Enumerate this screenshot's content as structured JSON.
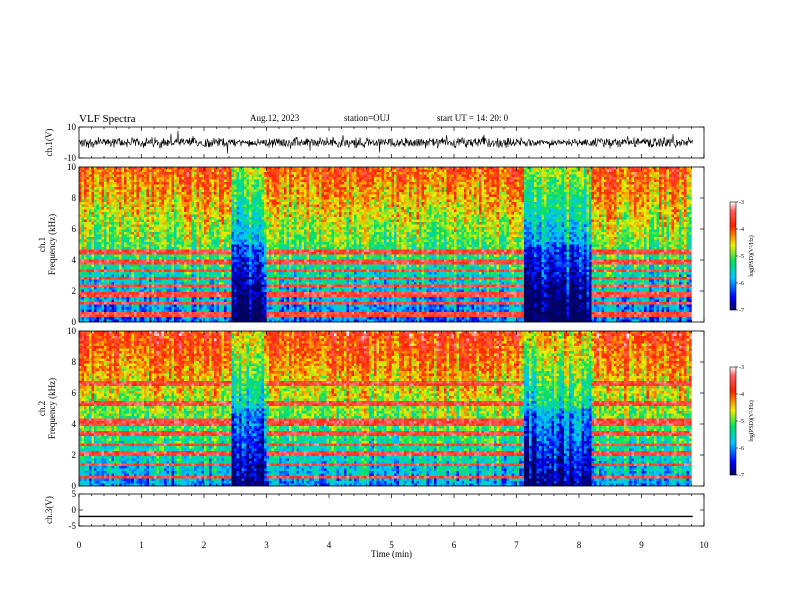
{
  "header": {
    "title": "VLF Spectra",
    "date": "Aug.12, 2023",
    "station": "station=OUJ",
    "start": "start  UT =   14: 20: 0"
  },
  "colors": {
    "low": "#0000a0",
    "mid_low": "#00c0ff",
    "mid": "#00e060",
    "mid_high": "#f0f000",
    "high": "#ff2000",
    "top": "#ffffff"
  },
  "chart_data": [
    {
      "type": "line",
      "name": "ch1-waveform",
      "ylabel": "ch.1(V)",
      "ylim": [
        -10,
        10
      ],
      "yticks": [
        "10",
        "-10"
      ],
      "baseline": 0,
      "amplitude_typical": 3
    },
    {
      "type": "heatmap",
      "name": "ch1-spectrogram",
      "ylabel": "ch.1\nFrequency (kHz)",
      "ylim": [
        0,
        10
      ],
      "yticks": [
        "0",
        "2",
        "4",
        "6",
        "8",
        "10"
      ],
      "xlim": [
        0,
        10
      ],
      "colorbar": {
        "label": "log(PSD)(V²/Hz)",
        "range": [
          -7,
          -3
        ],
        "ticks": [
          "-3",
          "-4",
          "-5",
          "-6",
          "-7"
        ]
      },
      "quiet_intervals_min": [
        [
          2.4,
          3.0
        ],
        [
          7.1,
          8.2
        ]
      ],
      "tone_bands_khz": [
        0.5,
        1.2,
        1.8,
        2.3,
        2.8,
        3.3,
        3.9,
        4.5
      ]
    },
    {
      "type": "heatmap",
      "name": "ch2-spectrogram",
      "ylabel": "ch.2\nFrequency (kHz)",
      "ylim": [
        0,
        10
      ],
      "yticks": [
        "0",
        "2",
        "4",
        "6",
        "8",
        "10"
      ],
      "xlim": [
        0,
        10
      ],
      "colorbar": {
        "label": "log(PSD)(V²/Hz)",
        "range": [
          -7,
          -3
        ],
        "ticks": [
          "-3",
          "-4",
          "-5",
          "-6",
          "-7"
        ]
      },
      "quiet_intervals_min": [
        [
          2.4,
          3.0
        ],
        [
          7.1,
          8.2
        ]
      ],
      "tone_bands_khz": [
        0.6,
        1.4,
        2.1,
        2.7,
        3.4,
        4.0,
        4.3,
        5.3,
        6.6
      ]
    },
    {
      "type": "line",
      "name": "ch3-waveform",
      "ylabel": "ch.3(V)",
      "ylim": [
        -5,
        5
      ],
      "yticks": [
        "5",
        "0",
        "-5"
      ],
      "constant_value": -2
    }
  ],
  "xaxis": {
    "label": "Time (min)",
    "ticks": [
      "0",
      "1",
      "2",
      "3",
      "4",
      "5",
      "6",
      "7",
      "8",
      "9",
      "10"
    ],
    "xlim": [
      0,
      10
    ],
    "data_end": 9.82
  }
}
